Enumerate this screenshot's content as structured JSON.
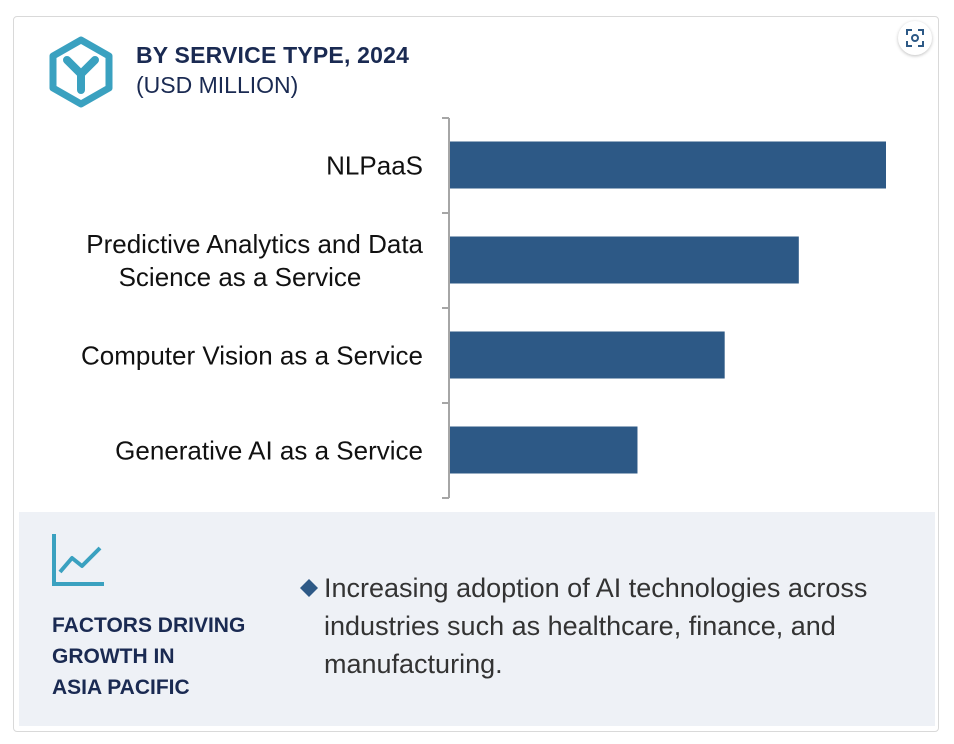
{
  "header": {
    "title": "BY SERVICE TYPE, 2024",
    "subtitle": "(USD MILLION)",
    "logo_icon": "hexagon-y-logo-icon",
    "expand_icon": "expand-icon"
  },
  "colors": {
    "bar": "#2d5986",
    "accent": "#3aa1c0",
    "title": "#1a2a52",
    "panel_bg": "#eef1f6"
  },
  "chart_data": {
    "type": "bar",
    "orientation": "horizontal",
    "categories": [
      "NLPaaS",
      "Predictive Analytics and Data Science as a Service",
      "Computer Vision as a Service",
      "Generative AI as a Service"
    ],
    "category_lines": [
      [
        "NLPaaS"
      ],
      [
        "Predictive Analytics and Data",
        "Science as a Service"
      ],
      [
        "Computer Vision as a Service"
      ],
      [
        "Generative AI as a Service"
      ]
    ],
    "values": [
      100,
      80,
      63,
      43
    ],
    "xlim": [
      0,
      100
    ],
    "value_labels_shown": false,
    "grid": false,
    "legend": "none"
  },
  "factors": {
    "icon": "trend-line-icon",
    "title": "FACTORS DRIVING\nGROWTH IN\nASIA PACIFIC",
    "bullet_icon": "diamond-bullet-icon",
    "items": [
      "Increasing adoption of AI technologies across industries such as healthcare, finance, and manufacturing."
    ]
  }
}
